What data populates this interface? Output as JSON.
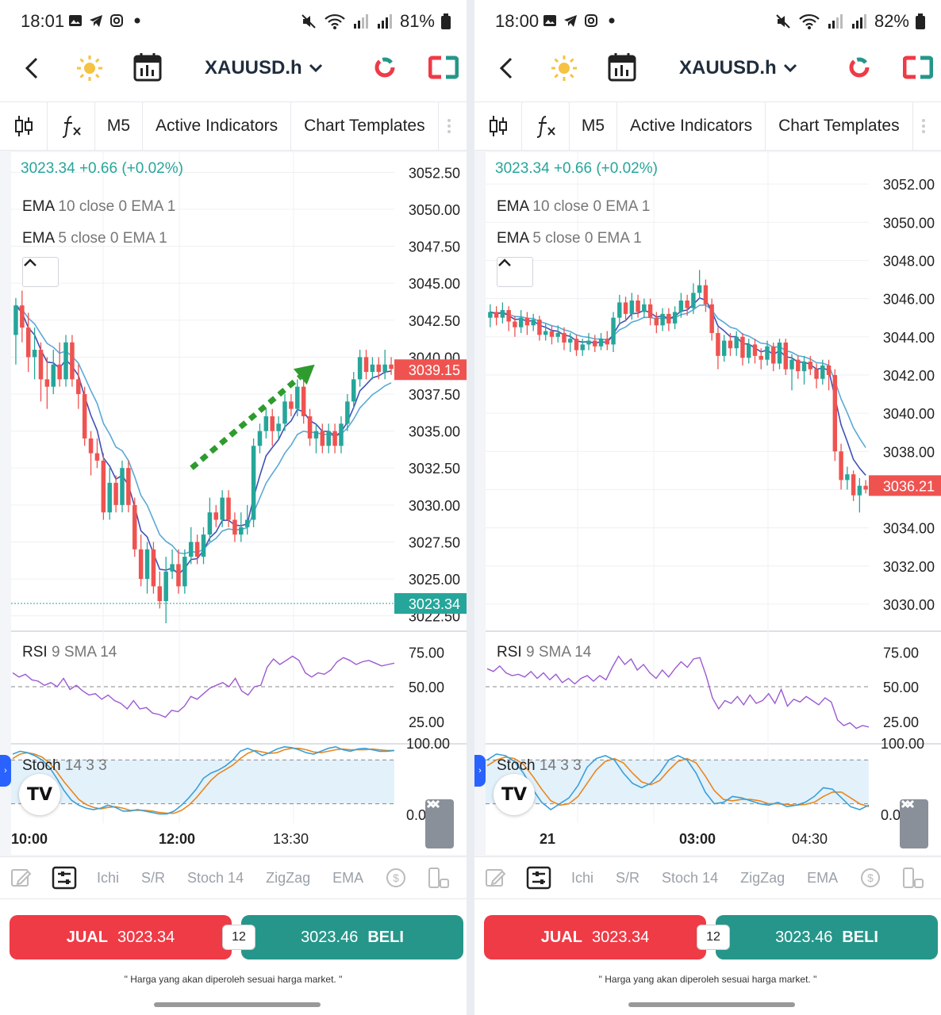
{
  "colors": {
    "up": "#26a69a",
    "down": "#ef5350",
    "ema_fast": "#3f51b5",
    "ema_slow": "#5aa9d6",
    "rsi": "#9c5ad0",
    "stoch_k": "#3aa0d8",
    "stoch_d": "#e8871e",
    "sell": "#ee3b46",
    "buy": "#26968a"
  },
  "panels": [
    {
      "status": {
        "time": "18:01",
        "battery": "81%"
      },
      "symbol": "XAUUSD.h",
      "toolbar": {
        "timeframe": "M5",
        "active_indicators": "Active Indicators",
        "chart_templates": "Chart Templates"
      },
      "quote_line": "3023.34 +0.66 (+0.02%)",
      "ema10": {
        "name": "EMA",
        "params": "10 close 0 EMA 1"
      },
      "ema5": {
        "name": "EMA",
        "params": "5 close 0 EMA 1"
      },
      "price_axis": [
        "3052.50",
        "3050.00",
        "3047.50",
        "3045.00",
        "3042.50",
        "3040.00",
        "3037.50",
        "3035.00",
        "3032.50",
        "3030.00",
        "3027.50",
        "3025.00",
        "3022.50"
      ],
      "price_range": [
        3022.0,
        3053.0
      ],
      "last_price_label": "3039.15",
      "last_price": 3039.15,
      "bid_label": "3023.34",
      "bid_price": 3023.34,
      "rsi_label": {
        "name": "RSI",
        "params": "9 SMA 14"
      },
      "rsi_axis": [
        "75.00",
        "50.00",
        "25.00"
      ],
      "stoch_label": {
        "name": "Stoch",
        "params": "14 3 3"
      },
      "stoch_axis": [
        "100.00",
        "0.00"
      ],
      "time_axis": [
        "10:00",
        "12:00",
        "13:30"
      ],
      "arrow": true,
      "candles": [
        [
          3041.5,
          3043.5,
          3044.0,
          3039.5
        ],
        [
          3043.5,
          3042.0,
          3044.5,
          3041.0
        ],
        [
          3042.0,
          3040.0,
          3043.0,
          3039.0
        ],
        [
          3040.0,
          3040.5,
          3042.0,
          3038.5
        ],
        [
          3040.5,
          3038.5,
          3041.0,
          3037.0
        ],
        [
          3038.5,
          3038.0,
          3040.0,
          3036.5
        ],
        [
          3038.0,
          3039.5,
          3040.5,
          3037.5
        ],
        [
          3039.5,
          3038.5,
          3041.0,
          3038.0
        ],
        [
          3038.5,
          3041.0,
          3041.5,
          3038.0
        ],
        [
          3041.0,
          3038.5,
          3041.5,
          3038.0
        ],
        [
          3038.5,
          3037.5,
          3039.5,
          3036.5
        ],
        [
          3037.5,
          3034.5,
          3038.0,
          3034.0
        ],
        [
          3034.5,
          3033.5,
          3035.0,
          3032.0
        ],
        [
          3033.5,
          3033.0,
          3034.5,
          3032.5
        ],
        [
          3033.0,
          3029.5,
          3033.5,
          3029.0
        ],
        [
          3029.5,
          3031.5,
          3032.5,
          3029.0
        ],
        [
          3031.5,
          3030.0,
          3032.0,
          3029.5
        ],
        [
          3030.0,
          3032.5,
          3033.0,
          3029.5
        ],
        [
          3032.5,
          3030.0,
          3033.0,
          3029.5
        ],
        [
          3030.0,
          3027.0,
          3030.5,
          3026.5
        ],
        [
          3027.0,
          3025.0,
          3028.0,
          3024.5
        ],
        [
          3025.0,
          3027.0,
          3027.5,
          3024.0
        ],
        [
          3027.0,
          3024.5,
          3027.5,
          3024.0
        ],
        [
          3024.5,
          3023.5,
          3025.5,
          3023.0
        ],
        [
          3023.5,
          3025.5,
          3026.5,
          3022.0
        ],
        [
          3025.5,
          3026.0,
          3027.0,
          3025.0
        ],
        [
          3026.0,
          3024.5,
          3027.0,
          3024.0
        ],
        [
          3024.5,
          3026.5,
          3027.0,
          3024.0
        ],
        [
          3026.5,
          3027.5,
          3028.5,
          3026.0
        ],
        [
          3027.5,
          3026.5,
          3028.0,
          3026.0
        ],
        [
          3026.5,
          3028.0,
          3028.5,
          3026.0
        ],
        [
          3028.0,
          3029.5,
          3030.5,
          3027.5
        ],
        [
          3029.5,
          3029.0,
          3030.0,
          3028.5
        ],
        [
          3029.0,
          3030.5,
          3031.0,
          3028.5
        ],
        [
          3030.5,
          3029.0,
          3031.0,
          3028.5
        ],
        [
          3029.0,
          3028.0,
          3029.5,
          3027.5
        ],
        [
          3028.0,
          3028.5,
          3029.5,
          3027.5
        ],
        [
          3028.5,
          3029.0,
          3030.0,
          3028.0
        ],
        [
          3029.0,
          3034.0,
          3034.5,
          3028.5
        ],
        [
          3034.0,
          3035.0,
          3035.5,
          3033.5
        ],
        [
          3035.0,
          3036.0,
          3036.5,
          3034.5
        ],
        [
          3036.0,
          3035.0,
          3036.5,
          3034.0
        ],
        [
          3035.0,
          3035.5,
          3036.0,
          3034.5
        ],
        [
          3035.5,
          3037.0,
          3037.5,
          3035.0
        ],
        [
          3037.0,
          3036.5,
          3037.5,
          3036.0
        ],
        [
          3036.5,
          3038.0,
          3038.5,
          3036.0
        ],
        [
          3038.0,
          3036.0,
          3038.5,
          3035.5
        ],
        [
          3036.0,
          3034.5,
          3036.5,
          3034.0
        ],
        [
          3034.5,
          3035.0,
          3035.5,
          3033.5
        ],
        [
          3035.0,
          3034.0,
          3035.5,
          3033.5
        ],
        [
          3034.0,
          3035.0,
          3035.5,
          3033.5
        ],
        [
          3035.0,
          3034.0,
          3035.5,
          3033.5
        ],
        [
          3034.0,
          3035.5,
          3036.0,
          3033.5
        ],
        [
          3035.5,
          3037.0,
          3037.5,
          3035.0
        ],
        [
          3037.0,
          3038.5,
          3039.0,
          3036.5
        ],
        [
          3038.5,
          3040.0,
          3040.5,
          3038.0
        ],
        [
          3040.0,
          3039.0,
          3040.5,
          3038.5
        ],
        [
          3039.0,
          3039.5,
          3040.0,
          3038.5
        ],
        [
          3039.5,
          3039.0,
          3040.0,
          3038.5
        ],
        [
          3039.0,
          3039.5,
          3040.5,
          3038.5
        ],
        [
          3039.5,
          3039.2,
          3040.0,
          3038.8
        ]
      ],
      "rsi": [
        60,
        57,
        59,
        55,
        54,
        51,
        53,
        50,
        56,
        48,
        51,
        47,
        44,
        45,
        41,
        44,
        40,
        38,
        34,
        40,
        34,
        35,
        31,
        30,
        28,
        33,
        32,
        36,
        43,
        41,
        45,
        49,
        51,
        53,
        50,
        56,
        47,
        44,
        50,
        51,
        64,
        70,
        66,
        69,
        72,
        69,
        60,
        57,
        60,
        59,
        62,
        68,
        71,
        69,
        66,
        68,
        69,
        67,
        65,
        66,
        67
      ],
      "stoch_k": [
        88,
        92,
        90,
        86,
        80,
        70,
        55,
        38,
        25,
        18,
        14,
        12,
        14,
        18,
        15,
        10,
        10,
        12,
        10,
        8,
        6,
        6,
        10,
        18,
        28,
        40,
        55,
        62,
        66,
        72,
        80,
        92,
        96,
        92,
        86,
        90,
        95,
        98,
        97,
        94,
        90,
        88,
        92,
        96,
        98,
        94,
        92,
        95,
        96,
        94,
        92,
        92,
        93
      ],
      "stoch_d": [
        82,
        88,
        90,
        88,
        84,
        76,
        64,
        50,
        38,
        26,
        19,
        15,
        13,
        15,
        16,
        14,
        11,
        11,
        11,
        10,
        8,
        7,
        7,
        11,
        18,
        28,
        40,
        52,
        61,
        67,
        73,
        82,
        89,
        93,
        91,
        89,
        90,
        94,
        96,
        96,
        94,
        91,
        90,
        92,
        94,
        95,
        94,
        94,
        94,
        95,
        94,
        93,
        93
      ]
    },
    {
      "status": {
        "time": "18:00",
        "battery": "82%"
      },
      "symbol": "XAUUSD.h",
      "toolbar": {
        "timeframe": "M5",
        "active_indicators": "Active Indicators",
        "chart_templates": "Chart Templates"
      },
      "quote_line": "3023.34 +0.66 (+0.02%)",
      "ema10": {
        "name": "EMA",
        "params": "10 close 0 EMA 1"
      },
      "ema5": {
        "name": "EMA",
        "params": "5 close 0 EMA 1"
      },
      "price_axis": [
        "3052.00",
        "3050.00",
        "3048.00",
        "3046.00",
        "3044.00",
        "3042.00",
        "3040.00",
        "3038.00",
        "3036.00",
        "3034.00",
        "3032.00",
        "3030.00"
      ],
      "price_range": [
        3029.0,
        3053.0
      ],
      "last_price_label": "3036.21",
      "last_price": 3036.21,
      "bid_label": "",
      "bid_price": null,
      "rsi_label": {
        "name": "RSI",
        "params": "9 SMA 14"
      },
      "rsi_axis": [
        "75.00",
        "50.00",
        "25.00"
      ],
      "stoch_label": {
        "name": "Stoch",
        "params": "14 3 3"
      },
      "stoch_axis": [
        "100.00",
        "0.00"
      ],
      "time_axis": [
        "21",
        "03:00",
        "04:30"
      ],
      "arrow": false,
      "candles": [
        [
          3045.0,
          3045.3,
          3045.7,
          3044.5
        ],
        [
          3045.3,
          3045.0,
          3045.6,
          3044.6
        ],
        [
          3045.0,
          3045.4,
          3045.8,
          3044.7
        ],
        [
          3045.4,
          3044.8,
          3045.6,
          3044.3
        ],
        [
          3044.8,
          3044.5,
          3045.1,
          3044.0
        ],
        [
          3044.5,
          3045.0,
          3045.4,
          3044.2
        ],
        [
          3045.0,
          3044.6,
          3045.3,
          3044.1
        ],
        [
          3044.6,
          3044.9,
          3045.2,
          3044.3
        ],
        [
          3044.9,
          3044.1,
          3045.1,
          3043.8
        ],
        [
          3044.1,
          3044.3,
          3044.7,
          3043.8
        ],
        [
          3044.3,
          3044.0,
          3044.6,
          3043.6
        ],
        [
          3044.0,
          3044.2,
          3044.6,
          3043.7
        ],
        [
          3044.2,
          3043.7,
          3044.5,
          3043.3
        ],
        [
          3043.7,
          3043.9,
          3044.2,
          3043.2
        ],
        [
          3043.9,
          3043.3,
          3044.1,
          3043.0
        ],
        [
          3043.3,
          3043.6,
          3043.9,
          3043.0
        ],
        [
          3043.6,
          3043.8,
          3044.2,
          3043.3
        ],
        [
          3043.8,
          3043.5,
          3044.1,
          3043.2
        ],
        [
          3043.5,
          3043.9,
          3044.2,
          3043.3
        ],
        [
          3043.9,
          3043.6,
          3044.3,
          3043.3
        ],
        [
          3043.6,
          3045.0,
          3045.3,
          3043.2
        ],
        [
          3045.0,
          3045.8,
          3046.2,
          3044.6
        ],
        [
          3045.8,
          3045.2,
          3046.1,
          3044.8
        ],
        [
          3045.2,
          3045.9,
          3046.3,
          3044.9
        ],
        [
          3045.9,
          3045.3,
          3046.2,
          3045.0
        ],
        [
          3045.3,
          3045.7,
          3046.0,
          3045.0
        ],
        [
          3045.7,
          3045.0,
          3046.0,
          3044.6
        ],
        [
          3045.0,
          3044.6,
          3045.3,
          3044.2
        ],
        [
          3044.6,
          3045.2,
          3045.5,
          3044.3
        ],
        [
          3045.2,
          3044.7,
          3045.5,
          3044.3
        ],
        [
          3044.7,
          3045.3,
          3045.6,
          3044.4
        ],
        [
          3045.3,
          3045.9,
          3046.3,
          3045.0
        ],
        [
          3045.9,
          3045.5,
          3046.2,
          3045.1
        ],
        [
          3045.5,
          3046.3,
          3046.8,
          3045.2
        ],
        [
          3046.3,
          3046.7,
          3047.5,
          3046.0
        ],
        [
          3046.7,
          3045.7,
          3047.0,
          3045.3
        ],
        [
          3045.7,
          3044.2,
          3046.0,
          3043.8
        ],
        [
          3044.2,
          3043.0,
          3044.5,
          3042.3
        ],
        [
          3043.0,
          3043.8,
          3044.1,
          3042.7
        ],
        [
          3043.8,
          3043.4,
          3044.2,
          3043.0
        ],
        [
          3043.4,
          3044.0,
          3044.3,
          3043.0
        ],
        [
          3044.0,
          3042.9,
          3044.2,
          3042.5
        ],
        [
          3042.9,
          3043.6,
          3043.9,
          3042.6
        ],
        [
          3043.6,
          3043.0,
          3043.9,
          3042.6
        ],
        [
          3043.0,
          3042.8,
          3043.4,
          3042.3
        ],
        [
          3042.8,
          3043.5,
          3043.8,
          3042.5
        ],
        [
          3043.5,
          3042.6,
          3043.7,
          3042.2
        ],
        [
          3042.6,
          3043.7,
          3043.9,
          3042.3
        ],
        [
          3043.7,
          3042.3,
          3043.9,
          3042.0
        ],
        [
          3042.3,
          3042.8,
          3043.1,
          3041.2
        ],
        [
          3042.8,
          3042.2,
          3043.0,
          3041.8
        ],
        [
          3042.2,
          3042.7,
          3043.0,
          3041.5
        ],
        [
          3042.7,
          3042.3,
          3043.0,
          3042.0
        ],
        [
          3042.3,
          3041.8,
          3042.6,
          3041.3
        ],
        [
          3041.8,
          3042.5,
          3042.8,
          3041.5
        ],
        [
          3042.5,
          3042.0,
          3042.8,
          3041.2
        ],
        [
          3042.0,
          3038.0,
          3042.3,
          3037.5
        ],
        [
          3038.0,
          3036.5,
          3038.4,
          3036.0
        ],
        [
          3036.5,
          3036.8,
          3037.2,
          3036.0
        ],
        [
          3036.8,
          3035.7,
          3037.0,
          3035.4
        ],
        [
          3035.7,
          3036.2,
          3036.6,
          3034.8
        ],
        [
          3036.2,
          3036.0,
          3036.5,
          3035.8
        ]
      ],
      "rsi": [
        63,
        61,
        65,
        60,
        58,
        59,
        57,
        61,
        56,
        60,
        55,
        59,
        53,
        56,
        52,
        56,
        58,
        54,
        58,
        55,
        64,
        72,
        66,
        70,
        62,
        66,
        60,
        56,
        62,
        57,
        63,
        68,
        64,
        70,
        71,
        58,
        42,
        34,
        40,
        38,
        43,
        37,
        44,
        38,
        40,
        45,
        38,
        48,
        36,
        41,
        39,
        43,
        40,
        37,
        42,
        39,
        26,
        22,
        24,
        20,
        22,
        21
      ],
      "stoch_k": [
        80,
        88,
        86,
        78,
        62,
        40,
        22,
        12,
        20,
        28,
        45,
        70,
        82,
        86,
        80,
        62,
        48,
        42,
        48,
        62,
        80,
        86,
        80,
        62,
        36,
        20,
        22,
        30,
        28,
        24,
        20,
        18,
        22,
        16,
        18,
        22,
        30,
        42,
        40,
        28,
        16,
        12,
        18
      ],
      "stoch_d": [
        72,
        80,
        84,
        82,
        74,
        58,
        40,
        24,
        18,
        20,
        30,
        48,
        66,
        78,
        82,
        76,
        62,
        50,
        46,
        52,
        66,
        78,
        82,
        76,
        58,
        38,
        26,
        24,
        26,
        26,
        24,
        20,
        20,
        19,
        18,
        19,
        22,
        30,
        36,
        36,
        28,
        20,
        16
      ]
    }
  ],
  "indicator_bar": [
    "Ichi",
    "S/R",
    "Stoch 14",
    "ZigZag",
    "EMA"
  ],
  "trade": {
    "sell_label": "JUAL",
    "sell_price": "3023.34",
    "spread": "12",
    "buy_price": "3023.46",
    "buy_label": "BELI"
  },
  "note": "\" Harga yang akan diperoleh sesuai harga market. \""
}
